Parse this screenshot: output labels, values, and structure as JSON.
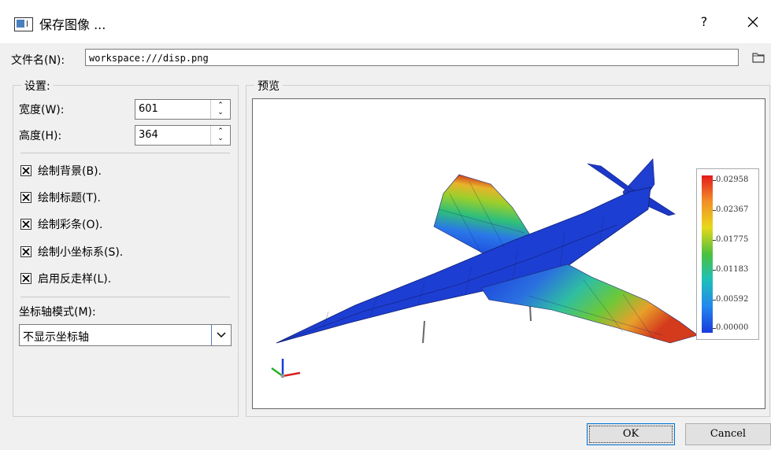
{
  "window": {
    "title": "保存图像 ...",
    "help_label": "?"
  },
  "filename": {
    "label": "文件名(N):",
    "value": "workspace:///disp.png"
  },
  "settings": {
    "group_title": "设置:",
    "width_label": "宽度(W):",
    "width_value": "601",
    "height_label": "高度(H):",
    "height_value": "364",
    "checkboxes": [
      {
        "label": "绘制背景(B).",
        "checked": true
      },
      {
        "label": "绘制标题(T).",
        "checked": true
      },
      {
        "label": "绘制彩条(O).",
        "checked": true
      },
      {
        "label": "绘制小坐标系(S).",
        "checked": true
      },
      {
        "label": "启用反走样(L).",
        "checked": true
      }
    ],
    "axis_mode_label": "坐标轴模式(M):",
    "axis_mode_value": "不显示坐标轴"
  },
  "preview": {
    "group_title": "预览",
    "legend_labels": [
      "0.02958",
      "0.02367",
      "0.01775",
      "0.01183",
      "0.00592",
      "0.00000"
    ]
  },
  "buttons": {
    "ok": "OK",
    "cancel": "Cancel"
  },
  "colors": {
    "accent": "#0078d7",
    "min_color": "#1a3adc",
    "max_color": "#e41a1c"
  }
}
